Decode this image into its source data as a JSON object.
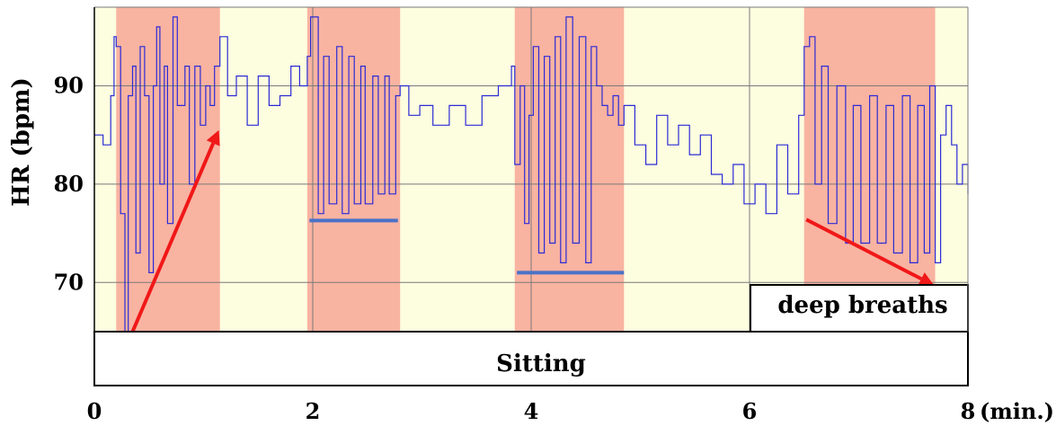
{
  "chart_data": {
    "type": "line",
    "title": "",
    "ylabel": "HR (bpm)",
    "xlabel": "",
    "x_unit_label": "(min.)",
    "xlim": [
      0,
      8
    ],
    "ylim": [
      65,
      98
    ],
    "x_ticks": [
      0,
      2,
      4,
      6,
      8
    ],
    "x_tick_labels": [
      "0",
      "2",
      "4",
      "6",
      "8"
    ],
    "y_ticks": [
      70,
      80,
      90
    ],
    "y_tick_labels": [
      "70",
      "80",
      "90"
    ],
    "grid": true,
    "colors": {
      "background": "#fdfde0",
      "highlight_band": "#f9b3a1",
      "line": "#2b2bd6",
      "arrow": "#f01818",
      "blue_bar": "#4a72c8"
    },
    "shaded_intervals_min": [
      [
        0.2,
        1.15
      ],
      [
        1.95,
        2.8
      ],
      [
        3.85,
        4.85
      ],
      [
        6.5,
        7.7
      ]
    ],
    "blue_bars": [
      {
        "x_start": 1.97,
        "x_end": 2.78,
        "y": 76.3
      },
      {
        "x_start": 3.87,
        "x_end": 4.85,
        "y": 71.0
      }
    ],
    "arrows": [
      {
        "from": [
          0.35,
          65.0
        ],
        "to": [
          1.14,
          85.5
        ]
      },
      {
        "from": [
          6.52,
          76.4
        ],
        "to": [
          7.69,
          69.7
        ]
      }
    ],
    "series": [
      {
        "name": "",
        "x": [
          0.0,
          0.08,
          0.15,
          0.18,
          0.2,
          0.24,
          0.28,
          0.31,
          0.35,
          0.38,
          0.42,
          0.46,
          0.5,
          0.54,
          0.57,
          0.6,
          0.64,
          0.67,
          0.72,
          0.76,
          0.8,
          0.83,
          0.87,
          0.92,
          0.97,
          1.02,
          1.06,
          1.1,
          1.15,
          1.22,
          1.3,
          1.4,
          1.5,
          1.6,
          1.7,
          1.8,
          1.88,
          1.95,
          1.98,
          2.05,
          2.1,
          2.15,
          2.22,
          2.27,
          2.33,
          2.38,
          2.44,
          2.48,
          2.55,
          2.6,
          2.66,
          2.7,
          2.76,
          2.8,
          2.88,
          2.98,
          3.1,
          3.25,
          3.4,
          3.55,
          3.7,
          3.82,
          3.85,
          3.9,
          3.94,
          3.98,
          4.02,
          4.07,
          4.12,
          4.17,
          4.22,
          4.27,
          4.32,
          4.38,
          4.44,
          4.5,
          4.55,
          4.6,
          4.65,
          4.7,
          4.75,
          4.8,
          4.85,
          4.95,
          5.05,
          5.15,
          5.25,
          5.35,
          5.45,
          5.55,
          5.65,
          5.75,
          5.85,
          5.95,
          6.05,
          6.15,
          6.25,
          6.35,
          6.45,
          6.5,
          6.55,
          6.6,
          6.66,
          6.72,
          6.8,
          6.88,
          6.95,
          7.02,
          7.1,
          7.17,
          7.25,
          7.32,
          7.4,
          7.47,
          7.54,
          7.6,
          7.65,
          7.7,
          7.75,
          7.8,
          7.85,
          7.9,
          7.95,
          8.0
        ],
        "y": [
          85,
          84,
          89,
          95,
          94,
          77,
          65,
          89,
          92,
          73,
          94,
          89,
          71,
          90,
          96,
          80,
          92,
          76,
          97,
          88,
          88,
          92,
          80,
          92,
          86,
          90,
          88,
          92,
          95,
          89,
          91,
          86,
          91,
          88,
          89,
          92,
          90,
          93,
          97,
          77,
          93,
          78,
          94,
          77,
          93,
          78,
          92,
          78,
          91,
          79,
          91,
          79,
          89,
          90,
          87,
          88,
          86,
          88,
          86,
          89,
          90,
          92,
          82,
          90,
          76,
          87,
          94,
          73,
          93,
          74,
          95,
          72,
          97,
          74,
          95,
          72,
          94,
          90,
          88,
          87,
          89,
          86,
          88,
          84,
          82,
          87,
          84,
          86,
          83,
          85,
          81,
          80,
          82,
          78,
          80,
          77,
          84,
          79,
          87,
          94,
          95,
          80,
          92,
          76,
          90,
          74,
          88,
          74,
          89,
          74,
          88,
          73,
          89,
          72,
          88,
          73,
          90,
          72,
          85,
          88,
          84,
          80,
          82,
          79
        ],
        "style": "line"
      }
    ],
    "annotations": {
      "deep_breaths_label": "deep breaths",
      "sitting_label": "Sitting"
    }
  }
}
